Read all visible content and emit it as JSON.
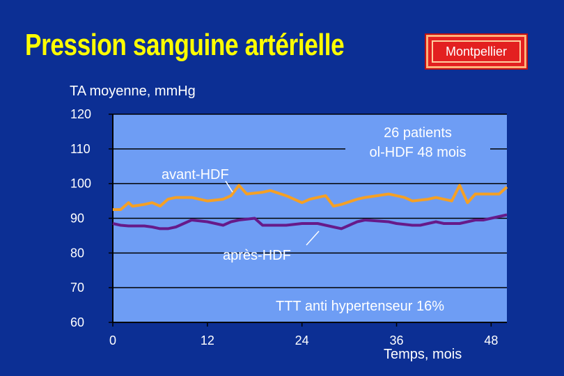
{
  "title": "Pression sanguine artérielle",
  "badge": "Montpellier",
  "chart_data": {
    "type": "line",
    "ylabel": "TA moyenne, mmHg",
    "xlabel": "Temps, mois",
    "ylim": [
      60,
      120
    ],
    "xlim": [
      0,
      50
    ],
    "yticks": [
      120,
      110,
      100,
      90,
      80,
      70,
      60
    ],
    "xticks": [
      0,
      12,
      24,
      36,
      48
    ],
    "grid": "horizontal",
    "colors": {
      "plot_bg": "#6e9df4",
      "avant": "#f5a025",
      "apres": "#661a8a",
      "text": "#ffffff"
    },
    "annotations": {
      "info_line1": "26 patients",
      "info_line2": "ol-HDF 48 mois",
      "treatment": "TTT anti hypertenseur 16%"
    },
    "series": [
      {
        "name": "avant-HDF",
        "x": [
          0,
          1,
          2,
          2.5,
          4,
          5,
          6,
          7,
          8,
          10,
          11,
          12,
          14,
          15,
          16,
          17,
          19,
          20,
          22,
          24,
          25,
          27,
          28,
          29,
          31,
          32,
          35,
          37,
          38,
          40,
          41,
          43,
          44,
          45,
          46,
          49,
          50
        ],
        "y": [
          92.5,
          92.5,
          94.5,
          93.5,
          94.0,
          94.5,
          93.5,
          95.5,
          96.0,
          96.0,
          95.5,
          95.0,
          95.5,
          96.5,
          99.5,
          97.0,
          97.5,
          98.0,
          96.5,
          94.5,
          95.5,
          96.5,
          93.5,
          94.0,
          95.5,
          96.0,
          97.0,
          96.0,
          95.0,
          95.5,
          96.0,
          95.0,
          99.5,
          94.5,
          97.0,
          97.0,
          99.0
        ]
      },
      {
        "name": "après-HDF",
        "x": [
          0,
          1,
          2,
          3,
          4,
          5,
          6,
          7,
          8,
          9,
          10,
          12,
          13,
          14,
          15,
          16,
          18,
          19,
          20,
          22,
          24,
          26,
          27,
          28,
          29,
          30,
          31,
          32,
          35,
          36,
          38,
          39,
          40,
          41,
          42,
          43,
          44,
          45,
          46,
          47,
          48,
          50
        ],
        "y": [
          88.5,
          88.0,
          87.8,
          87.8,
          87.8,
          87.5,
          87.0,
          87.0,
          87.5,
          88.5,
          89.5,
          89.0,
          88.5,
          88.0,
          89.0,
          89.5,
          90.0,
          88.0,
          88.0,
          88.0,
          88.5,
          88.5,
          88.0,
          87.5,
          87.0,
          88.0,
          89.0,
          89.5,
          89.0,
          88.5,
          88.0,
          88.0,
          88.5,
          89.0,
          88.5,
          88.5,
          88.5,
          89.0,
          89.5,
          89.5,
          90.0,
          91.0
        ]
      }
    ]
  }
}
